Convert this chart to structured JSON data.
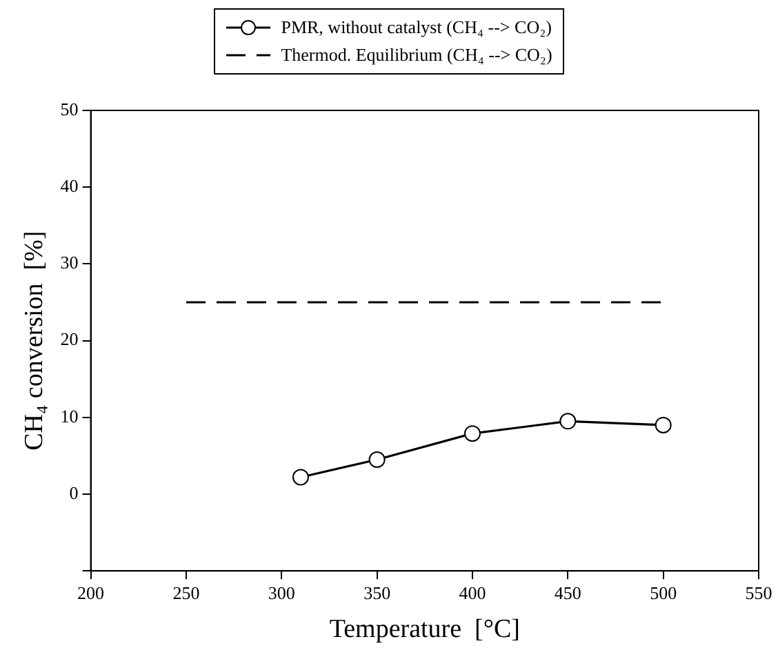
{
  "chart_data": {
    "type": "line",
    "xlabel": "Temperature  [°C]",
    "ylabel": "CH₄ conversion  [%]",
    "xlim": [
      200,
      550
    ],
    "xticks": [
      200,
      250,
      300,
      350,
      400,
      450,
      500,
      550
    ],
    "ylim": [
      -10,
      50
    ],
    "yticks": [
      {
        "value": -10,
        "label": null
      },
      0,
      10,
      20,
      30,
      40,
      50
    ],
    "legend": "top",
    "grid": false,
    "series": [
      {
        "name": "PMR, without catalyst (CH₄ --> CO₂)",
        "color": "#000000",
        "x": [
          310,
          350,
          400,
          450,
          500
        ],
        "values": [
          2.2,
          4.5,
          7.9,
          9.5,
          9.0
        ],
        "marker": "circle",
        "line_style": "solid"
      },
      {
        "name": "Thermod. Equilibrium (CH₄ --> CO₂)",
        "color": "#000000",
        "x": [
          250,
          500
        ],
        "values": [
          25,
          25
        ],
        "marker": "none",
        "line_style": "dashed"
      }
    ]
  }
}
